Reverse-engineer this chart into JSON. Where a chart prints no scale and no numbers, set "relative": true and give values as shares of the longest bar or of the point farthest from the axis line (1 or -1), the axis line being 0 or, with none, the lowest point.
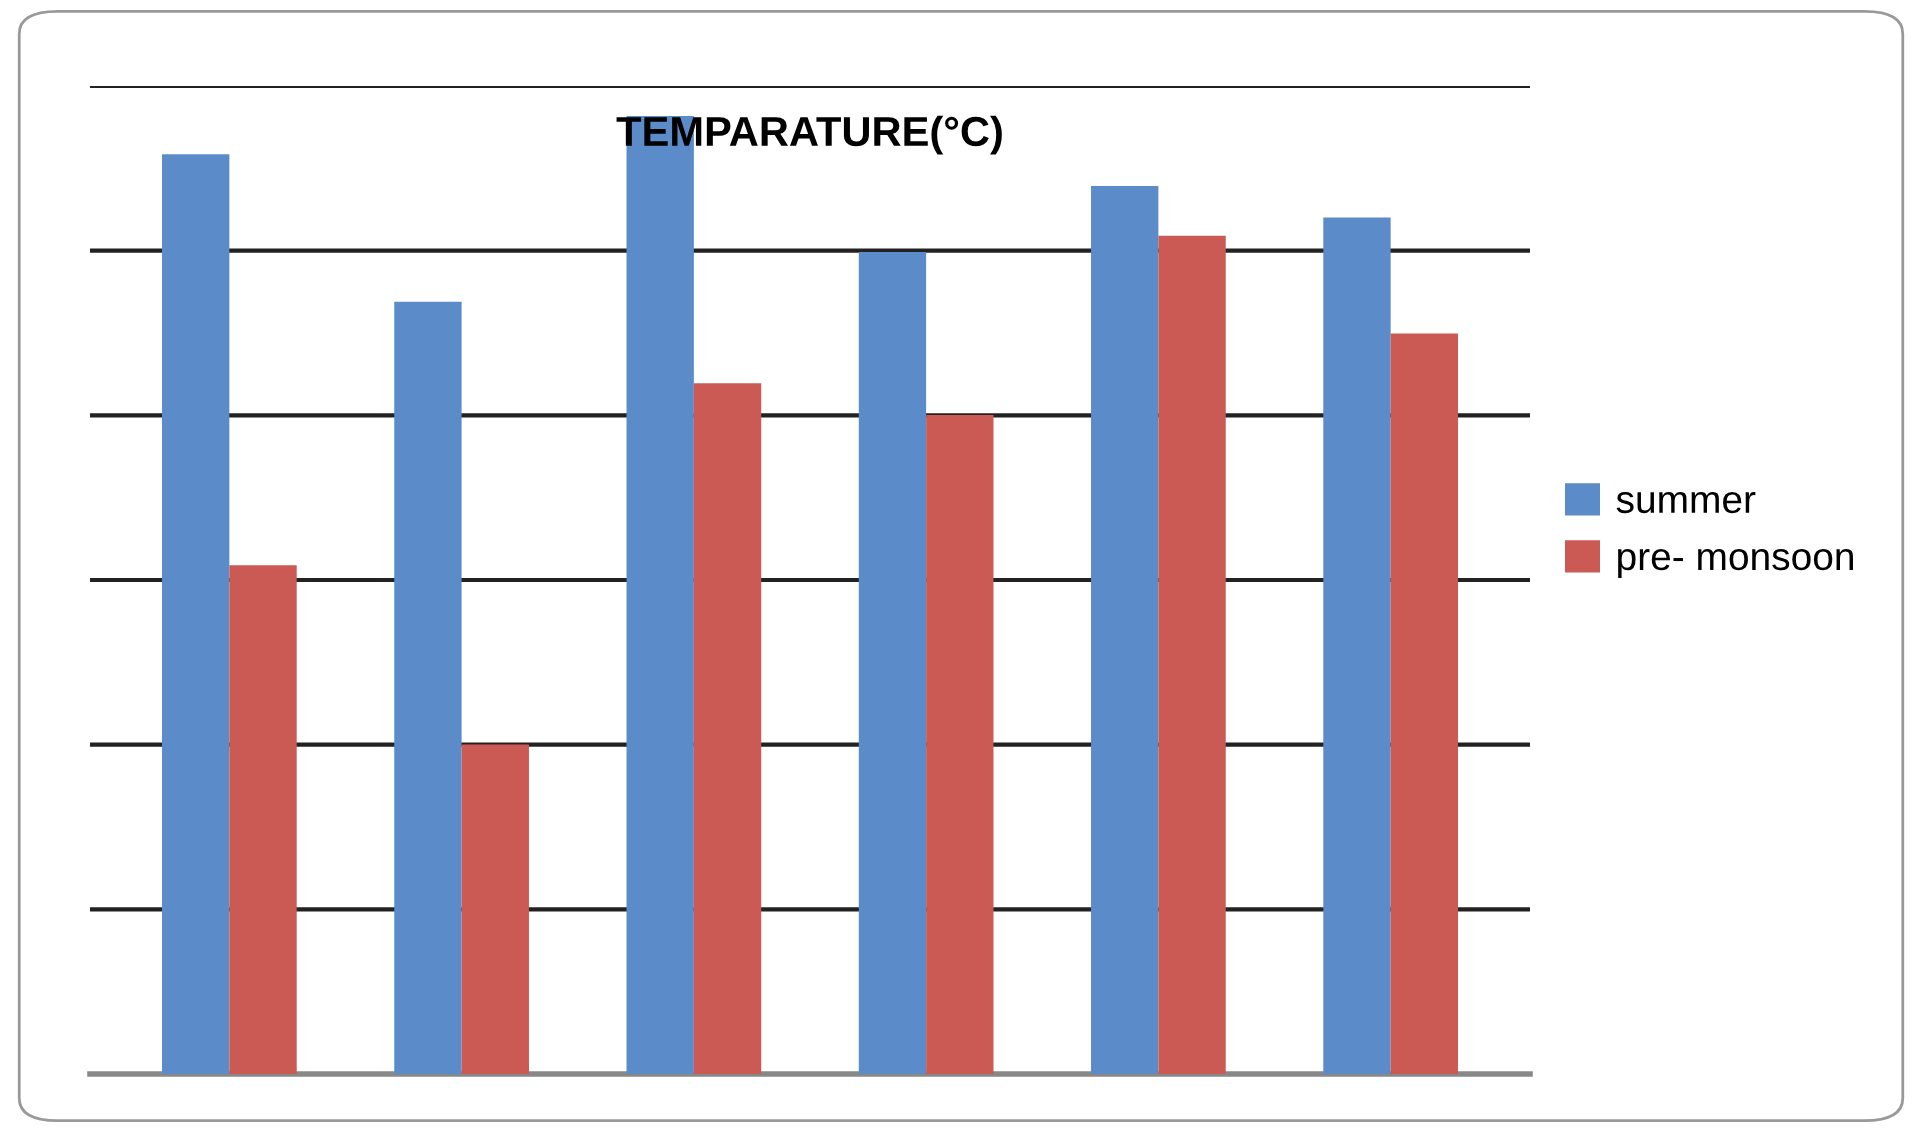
{
  "chart_data": {
    "type": "bar",
    "title": "TEMPARATURE(°C)",
    "relative": true,
    "categories": [
      null,
      null,
      null,
      null,
      null,
      null
    ],
    "grid": "y",
    "legend": "right",
    "series": [
      {
        "name": "summer",
        "color": "#5b8bc8",
        "values": [
          0.96,
          0.806,
          1,
          0.858,
          0.927,
          0.894
        ]
      },
      {
        "name": "pre- monsoon",
        "color": "#cb5a54",
        "values": [
          0.531,
          0.344,
          0.721,
          0.688,
          0.875,
          0.773
        ]
      }
    ]
  }
}
